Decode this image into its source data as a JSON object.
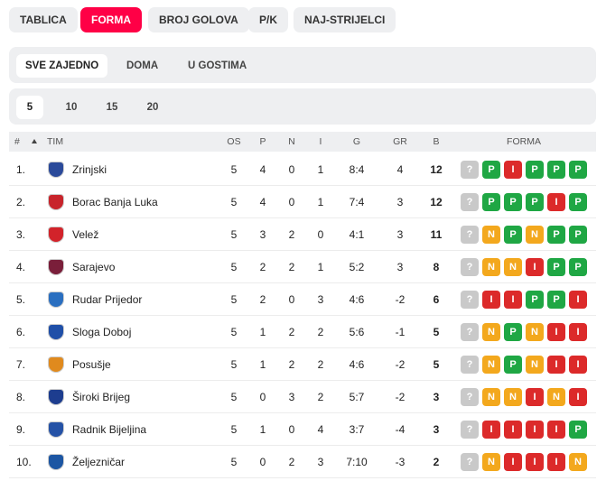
{
  "tabs": [
    "TABLICA",
    "FORMA",
    "BROJ GOLOVA",
    "P/K",
    "NAJ-STRIJELCI"
  ],
  "active_tab": 1,
  "subtabs": [
    "SVE ZAJEDNO",
    "DOMA",
    "U GOSTIMA"
  ],
  "active_subtab": 0,
  "counts": [
    5,
    10,
    15,
    20
  ],
  "active_count": 0,
  "table": {
    "headers": [
      "#",
      "TIM",
      "OS",
      "P",
      "N",
      "I",
      "G",
      "GR",
      "B",
      "FORMA"
    ],
    "form_colors": {
      "P": "#1fa744",
      "I": "#dc2a2a",
      "N": "#f3a81d",
      "?": "#c9c9c9"
    },
    "rows": [
      {
        "rank": "1.",
        "team": "Zrinjski",
        "logo": "#2b4a9a",
        "os": 5,
        "p": 4,
        "n": 0,
        "i": 1,
        "g": "8:4",
        "gr": 4,
        "b": 12,
        "form": [
          "?",
          "P",
          "I",
          "P",
          "P",
          "P"
        ]
      },
      {
        "rank": "2.",
        "team": "Borac Banja Luka",
        "logo": "#c8242b",
        "os": 5,
        "p": 4,
        "n": 0,
        "i": 1,
        "g": "7:4",
        "gr": 3,
        "b": 12,
        "form": [
          "?",
          "P",
          "P",
          "P",
          "I",
          "P"
        ]
      },
      {
        "rank": "3.",
        "team": "Velež",
        "logo": "#d2232a",
        "os": 5,
        "p": 3,
        "n": 2,
        "i": 0,
        "g": "4:1",
        "gr": 3,
        "b": 11,
        "form": [
          "?",
          "N",
          "P",
          "N",
          "P",
          "P"
        ]
      },
      {
        "rank": "4.",
        "team": "Sarajevo",
        "logo": "#7a1e3a",
        "os": 5,
        "p": 2,
        "n": 2,
        "i": 1,
        "g": "5:2",
        "gr": 3,
        "b": 8,
        "form": [
          "?",
          "N",
          "N",
          "I",
          "P",
          "P"
        ]
      },
      {
        "rank": "5.",
        "team": "Rudar Prijedor",
        "logo": "#2a6fc0",
        "os": 5,
        "p": 2,
        "n": 0,
        "i": 3,
        "g": "4:6",
        "gr": -2,
        "b": 6,
        "form": [
          "?",
          "I",
          "I",
          "P",
          "P",
          "I"
        ]
      },
      {
        "rank": "6.",
        "team": "Sloga Doboj",
        "logo": "#1f4fa8",
        "os": 5,
        "p": 1,
        "n": 2,
        "i": 2,
        "g": "5:6",
        "gr": -1,
        "b": 5,
        "form": [
          "?",
          "N",
          "P",
          "N",
          "I",
          "I"
        ]
      },
      {
        "rank": "7.",
        "team": "Posušje",
        "logo": "#e08a1e",
        "os": 5,
        "p": 1,
        "n": 2,
        "i": 2,
        "g": "4:6",
        "gr": -2,
        "b": 5,
        "form": [
          "?",
          "N",
          "P",
          "N",
          "I",
          "I"
        ]
      },
      {
        "rank": "8.",
        "team": "Široki Brijeg",
        "logo": "#1d3d8f",
        "os": 5,
        "p": 0,
        "n": 3,
        "i": 2,
        "g": "5:7",
        "gr": -2,
        "b": 3,
        "form": [
          "?",
          "N",
          "N",
          "I",
          "N",
          "I"
        ]
      },
      {
        "rank": "9.",
        "team": "Radnik Bijeljina",
        "logo": "#2552a6",
        "os": 5,
        "p": 1,
        "n": 0,
        "i": 4,
        "g": "3:7",
        "gr": -4,
        "b": 3,
        "form": [
          "?",
          "I",
          "I",
          "I",
          "I",
          "P"
        ]
      },
      {
        "rank": "10.",
        "team": "Željezničar",
        "logo": "#1c56a3",
        "os": 5,
        "p": 0,
        "n": 2,
        "i": 3,
        "g": "7:10",
        "gr": -3,
        "b": 2,
        "form": [
          "?",
          "N",
          "I",
          "I",
          "I",
          "N"
        ]
      }
    ]
  }
}
